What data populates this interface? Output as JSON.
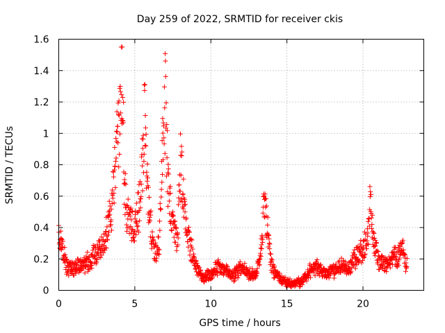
{
  "chart_data": {
    "type": "scatter",
    "title": "Day 259 of 2022, SRMTID for receiver ckis",
    "xlabel": "GPS time / hours",
    "ylabel": "SRMTID / TECUs",
    "xlim": [
      0,
      24
    ],
    "ylim": [
      0,
      1.6
    ],
    "xticks": [
      0,
      5,
      10,
      15,
      20
    ],
    "xtick_labels": [
      "0",
      "5",
      "10",
      "15",
      "20"
    ],
    "yticks": [
      0,
      0.2,
      0.4,
      0.6,
      0.8,
      1,
      1.2,
      1.4,
      1.6
    ],
    "ytick_labels": [
      "0",
      "0.2",
      "0.4",
      "0.6",
      "0.8",
      "1",
      "1.2",
      "1.4",
      "1.6"
    ],
    "grid": true,
    "marker": "+",
    "color": "#ff0000",
    "series": [
      {
        "name": "SRMTID",
        "profile_x": [
          0.0,
          0.2,
          0.5,
          1.0,
          1.5,
          2.0,
          2.5,
          3.0,
          3.3,
          3.6,
          3.8,
          4.0,
          4.15,
          4.3,
          4.5,
          4.8,
          5.0,
          5.3,
          5.5,
          5.65,
          5.8,
          6.0,
          6.3,
          6.6,
          6.85,
          7.0,
          7.2,
          7.5,
          7.8,
          8.0,
          8.3,
          8.6,
          9.0,
          9.5,
          10.0,
          10.5,
          11.0,
          11.5,
          12.0,
          12.5,
          13.0,
          13.3,
          13.5,
          14.0,
          14.5,
          15.0,
          15.5,
          16.0,
          16.5,
          17.0,
          17.5,
          18.0,
          18.5,
          19.0,
          19.5,
          20.0,
          20.3,
          20.5,
          20.7,
          21.0,
          21.5,
          22.0,
          22.3,
          22.6,
          22.8
        ],
        "profile_y": [
          0.35,
          0.28,
          0.15,
          0.14,
          0.16,
          0.18,
          0.25,
          0.3,
          0.45,
          0.6,
          0.9,
          1.1,
          1.45,
          0.75,
          0.5,
          0.4,
          0.4,
          0.55,
          0.8,
          1.15,
          0.7,
          0.45,
          0.25,
          0.3,
          0.95,
          1.22,
          0.65,
          0.4,
          0.3,
          0.85,
          0.45,
          0.3,
          0.15,
          0.08,
          0.1,
          0.15,
          0.12,
          0.1,
          0.15,
          0.1,
          0.1,
          0.25,
          0.55,
          0.15,
          0.08,
          0.05,
          0.04,
          0.06,
          0.12,
          0.15,
          0.1,
          0.12,
          0.15,
          0.14,
          0.2,
          0.25,
          0.35,
          0.6,
          0.3,
          0.2,
          0.15,
          0.2,
          0.22,
          0.28,
          0.18
        ],
        "sample_step_hours": 0.0167,
        "x_end": 22.9
      }
    ]
  }
}
